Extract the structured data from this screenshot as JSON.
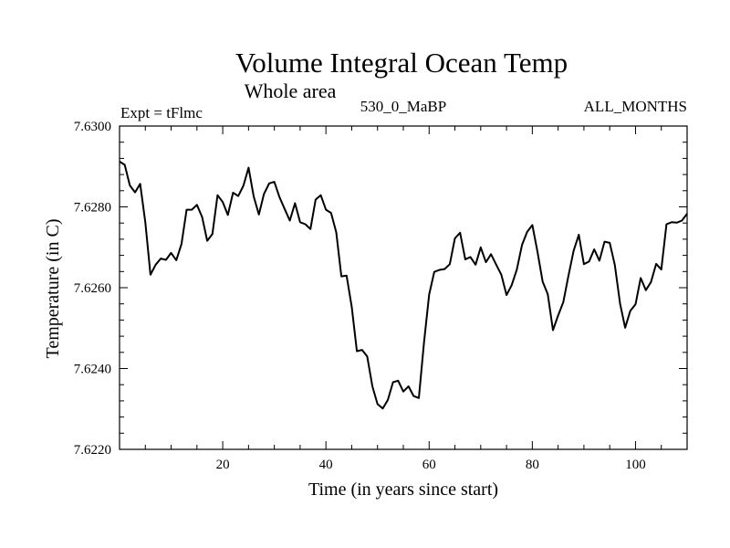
{
  "chart_data": {
    "type": "line",
    "title": "Volume Integral Ocean Temp",
    "subtitle": "Whole area",
    "left_label": "Expt = tFlmc",
    "center_label": "530_0_MaBP",
    "right_label": "ALL_MONTHS",
    "xlabel": "Time (in years since start)",
    "ylabel": "Temperature (in C)",
    "xlim": [
      0,
      110
    ],
    "ylim": [
      7.622,
      7.63
    ],
    "xticks": [
      20,
      40,
      60,
      80,
      100
    ],
    "xtick_labels": [
      "20",
      "40",
      "60",
      "80",
      "100"
    ],
    "yticks": [
      7.622,
      7.624,
      7.626,
      7.628,
      7.63
    ],
    "ytick_labels": [
      "7.6220",
      "7.6240",
      "7.6260",
      "7.6280",
      "7.6300"
    ],
    "series": [
      {
        "name": "Volume Integral Ocean Temp",
        "color": "#000000",
        "x": [
          0,
          1,
          2,
          3,
          4,
          5,
          6,
          7,
          8,
          9,
          10,
          11,
          12,
          13,
          14,
          15,
          16,
          17,
          18,
          19,
          20,
          21,
          22,
          23,
          24,
          25,
          26,
          27,
          28,
          29,
          30,
          31,
          32,
          33,
          34,
          35,
          36,
          37,
          38,
          39,
          40,
          41,
          42,
          43,
          44,
          45,
          46,
          47,
          48,
          49,
          50,
          51,
          52,
          53,
          54,
          55,
          56,
          57,
          58,
          59,
          60,
          61,
          62,
          63,
          64,
          65,
          66,
          67,
          68,
          69,
          70,
          71,
          72,
          73,
          74,
          75,
          76,
          77,
          78,
          79,
          80,
          81,
          82,
          83,
          84,
          85,
          86,
          87,
          88,
          89,
          90,
          91,
          92,
          93,
          94,
          95,
          96,
          97,
          98,
          99,
          100,
          101,
          102,
          103,
          104,
          105,
          106,
          107,
          108,
          109,
          110
        ],
        "values": [
          7.62912,
          7.62904,
          7.62853,
          7.62836,
          7.62857,
          7.62761,
          7.62632,
          7.62657,
          7.62672,
          7.62669,
          7.62686,
          7.62668,
          7.62708,
          7.62793,
          7.62793,
          7.62805,
          7.62775,
          7.62716,
          7.62733,
          7.62829,
          7.62812,
          7.6278,
          7.62835,
          7.62827,
          7.62852,
          7.62897,
          7.62826,
          7.62781,
          7.62832,
          7.62858,
          7.62862,
          7.62824,
          7.62795,
          7.62766,
          7.62809,
          7.62762,
          7.62757,
          7.62745,
          7.62818,
          7.62829,
          7.62793,
          7.62785,
          7.62737,
          7.62628,
          7.6263,
          7.62552,
          7.62443,
          7.62446,
          7.6243,
          7.62356,
          7.62312,
          7.62301,
          7.62322,
          7.62366,
          7.6237,
          7.62343,
          7.62356,
          7.62332,
          7.62327,
          7.62463,
          7.62583,
          7.62639,
          7.62644,
          7.62646,
          7.62658,
          7.62722,
          7.62736,
          7.6267,
          7.62676,
          7.62657,
          7.627,
          7.62663,
          7.62683,
          7.62657,
          7.62632,
          7.62582,
          7.62606,
          7.62645,
          7.62706,
          7.62738,
          7.62755,
          7.62689,
          7.62615,
          7.62584,
          7.62495,
          7.62531,
          7.62564,
          7.62629,
          7.62691,
          7.62731,
          7.62658,
          7.62665,
          7.62695,
          7.62667,
          7.62714,
          7.62711,
          7.62656,
          7.62561,
          7.62501,
          7.62543,
          7.62559,
          7.62624,
          7.62594,
          7.62614,
          7.62659,
          7.62645,
          7.62757,
          7.62762,
          7.62761,
          7.62766,
          7.62783
        ]
      }
    ]
  }
}
